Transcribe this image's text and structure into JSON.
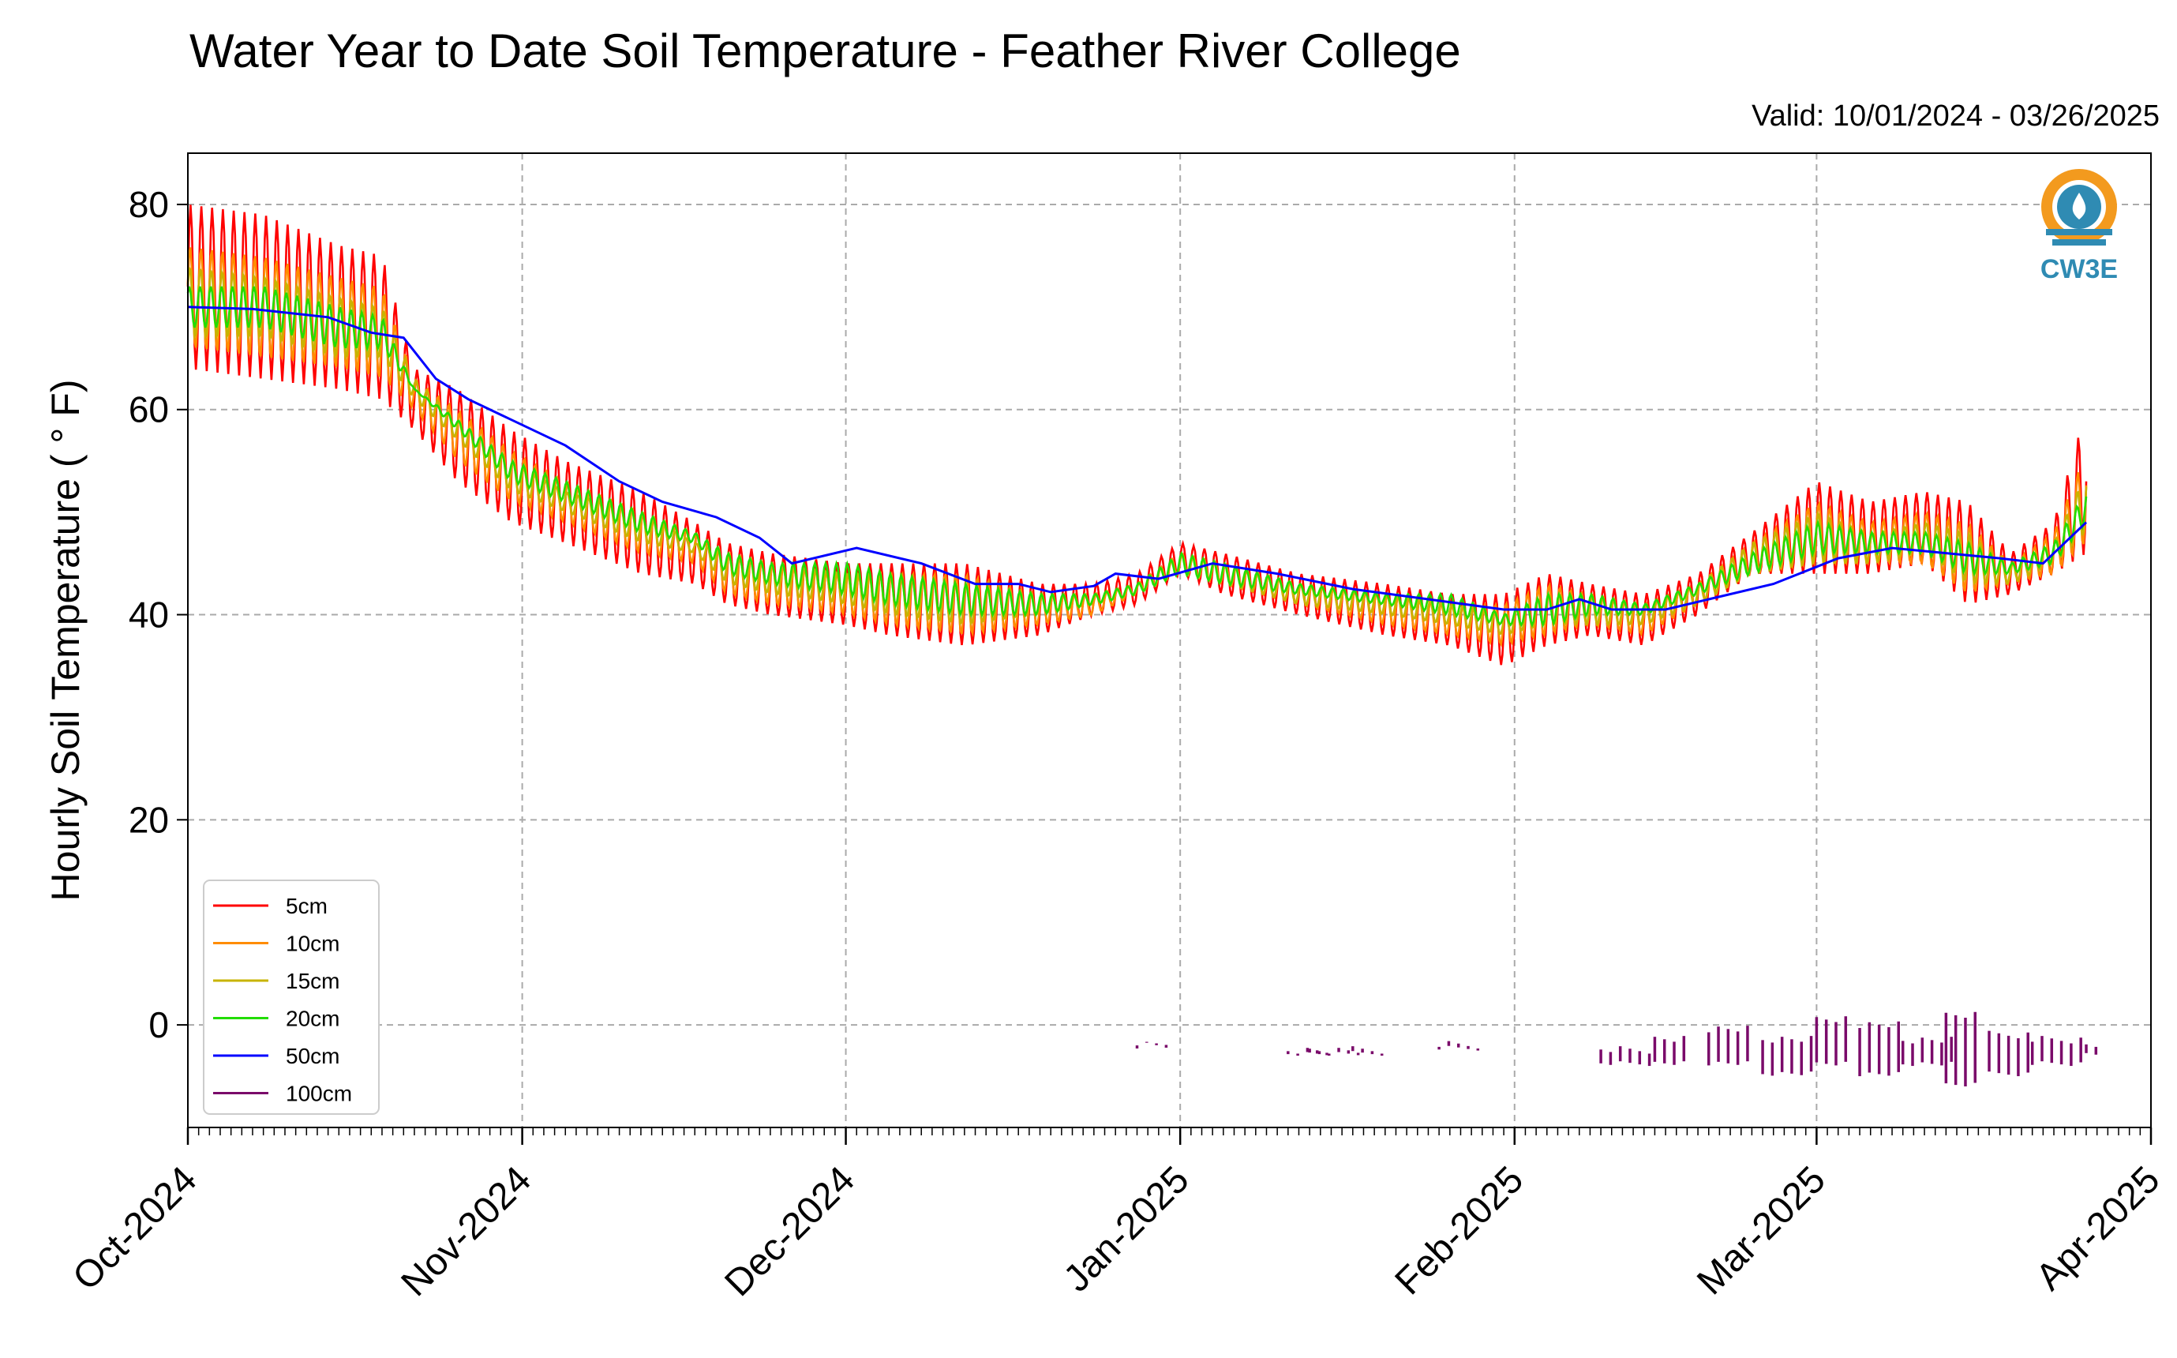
{
  "title": "Water Year to Date Soil Temperature - Feather River College",
  "valid_label": "Valid: 10/01/2024 - 03/26/2025",
  "logo_text": "CW3E",
  "chart_data": {
    "type": "line",
    "title": "Water Year to Date Soil Temperature - Feather River College",
    "ylabel": "Hourly Soil Temperature ( ° F)",
    "xlabel": "",
    "xlim": [
      "2024-10-01",
      "2025-04-01"
    ],
    "ylim": [
      -10,
      85
    ],
    "x_ticks": [
      "Oct-2024",
      "Nov-2024",
      "Dec-2024",
      "Jan-2025",
      "Feb-2025",
      "Mar-2025",
      "Apr-2025"
    ],
    "y_ticks": [
      0,
      20,
      40,
      60,
      80
    ],
    "grid": true,
    "legend_position": "lower-left",
    "series": [
      {
        "name": "5cm",
        "color": "#ff0000",
        "x": [
          "2024-10-01",
          "2024-10-08",
          "2024-10-15",
          "2024-10-19",
          "2024-10-22",
          "2024-10-26",
          "2024-10-31",
          "2024-11-05",
          "2024-11-12",
          "2024-11-17",
          "2024-11-20",
          "2024-11-24",
          "2024-12-01",
          "2024-12-05",
          "2024-12-12",
          "2024-12-19",
          "2024-12-24",
          "2024-12-28",
          "2025-01-01",
          "2025-01-05",
          "2025-01-12",
          "2025-01-20",
          "2025-01-26",
          "2025-01-31",
          "2025-02-04",
          "2025-02-08",
          "2025-02-13",
          "2025-02-18",
          "2025-02-23",
          "2025-03-01",
          "2025-03-06",
          "2025-03-11",
          "2025-03-15",
          "2025-03-19",
          "2025-03-23",
          "2025-03-26"
        ],
        "min": [
          64,
          63,
          62,
          61,
          58,
          53,
          49,
          47,
          44,
          43,
          41,
          40,
          39,
          38,
          37,
          38,
          40,
          41,
          44,
          42,
          40,
          38,
          37,
          35,
          37,
          38,
          37,
          40,
          44,
          44,
          44,
          45,
          41,
          42,
          44,
          46
        ],
        "max": [
          80,
          79,
          76,
          75,
          64,
          62,
          58,
          55,
          52,
          49,
          47,
          46,
          45,
          45,
          45,
          43,
          43,
          44,
          47,
          46,
          44,
          43,
          42,
          42,
          44,
          43,
          42,
          44,
          48,
          53,
          51,
          52,
          51,
          46,
          49,
          60
        ]
      },
      {
        "name": "10cm",
        "color": "#ff8c00",
        "x": [
          "2024-10-01",
          "2024-10-08",
          "2024-10-15",
          "2024-10-19",
          "2024-10-22",
          "2024-10-26",
          "2024-10-31",
          "2024-11-05",
          "2024-11-12",
          "2024-11-17",
          "2024-11-20",
          "2024-11-24",
          "2024-12-01",
          "2024-12-05",
          "2024-12-12",
          "2024-12-19",
          "2024-12-24",
          "2024-12-28",
          "2025-01-01",
          "2025-01-05",
          "2025-01-12",
          "2025-01-20",
          "2025-01-26",
          "2025-01-31",
          "2025-02-04",
          "2025-02-08",
          "2025-02-13",
          "2025-02-18",
          "2025-02-23",
          "2025-03-01",
          "2025-03-06",
          "2025-03-11",
          "2025-03-15",
          "2025-03-19",
          "2025-03-23",
          "2025-03-26"
        ],
        "min": [
          66,
          65,
          64,
          63,
          60,
          55,
          51,
          49,
          46,
          45,
          42,
          41,
          40,
          39,
          38,
          39,
          40,
          42,
          44,
          43,
          41,
          39,
          38,
          37,
          38,
          39,
          38,
          41,
          44,
          45,
          45,
          45,
          42,
          43,
          44,
          47
        ],
        "max": [
          76,
          75,
          73,
          72,
          63,
          60,
          56,
          53,
          50,
          48,
          46,
          45,
          44,
          44,
          44,
          42,
          42,
          43,
          46,
          45,
          43,
          42,
          41,
          41,
          43,
          42,
          41,
          43,
          47,
          51,
          49,
          50,
          49,
          45,
          48,
          56
        ]
      },
      {
        "name": "15cm",
        "color": "#c8b400",
        "x": [
          "2024-10-01",
          "2024-10-08",
          "2024-10-15",
          "2024-10-19",
          "2024-10-22",
          "2024-10-26",
          "2024-10-31",
          "2024-11-05",
          "2024-11-12",
          "2024-11-17",
          "2024-11-20",
          "2024-11-24",
          "2024-12-01",
          "2024-12-05",
          "2024-12-12",
          "2024-12-19",
          "2024-12-24",
          "2024-12-28",
          "2025-01-01",
          "2025-01-05",
          "2025-01-12",
          "2025-01-20",
          "2025-01-26",
          "2025-01-31",
          "2025-02-04",
          "2025-02-08",
          "2025-02-13",
          "2025-02-18",
          "2025-02-23",
          "2025-03-01",
          "2025-03-06",
          "2025-03-11",
          "2025-03-15",
          "2025-03-19",
          "2025-03-23",
          "2025-03-26"
        ],
        "min": [
          67,
          67,
          65,
          65,
          61,
          57,
          52,
          50,
          47,
          46,
          43,
          42,
          41,
          40,
          39,
          40,
          41,
          42,
          44,
          43,
          41,
          40,
          39,
          38,
          39,
          39,
          39,
          41,
          44,
          45,
          45,
          46,
          43,
          43,
          45,
          48
        ],
        "max": [
          74,
          73,
          71,
          70,
          63,
          59,
          55,
          52,
          50,
          47,
          46,
          45,
          44,
          44,
          43,
          42,
          42,
          43,
          46,
          45,
          43,
          42,
          41,
          40,
          42,
          42,
          41,
          43,
          47,
          50,
          48,
          49,
          48,
          45,
          47,
          54
        ]
      },
      {
        "name": "20cm",
        "color": "#22dd00",
        "x": [
          "2024-10-01",
          "2024-10-08",
          "2024-10-15",
          "2024-10-19",
          "2024-10-22",
          "2024-10-26",
          "2024-10-31",
          "2024-11-05",
          "2024-11-12",
          "2024-11-17",
          "2024-11-20",
          "2024-11-24",
          "2024-12-01",
          "2024-12-05",
          "2024-12-12",
          "2024-12-19",
          "2024-12-24",
          "2024-12-28",
          "2025-01-01",
          "2025-01-05",
          "2025-01-12",
          "2025-01-20",
          "2025-01-26",
          "2025-01-31",
          "2025-02-04",
          "2025-02-08",
          "2025-02-13",
          "2025-02-18",
          "2025-02-23",
          "2025-03-01",
          "2025-03-06",
          "2025-03-11",
          "2025-03-15",
          "2025-03-19",
          "2025-03-23",
          "2025-03-26"
        ],
        "min": [
          68,
          68,
          66,
          66,
          62,
          58,
          53,
          51,
          48,
          47,
          44,
          43,
          42,
          41,
          40,
          40,
          41,
          42,
          44,
          43,
          42,
          41,
          40,
          39,
          39,
          40,
          40,
          42,
          44,
          46,
          46,
          46,
          44,
          44,
          45,
          49
        ],
        "max": [
          72,
          72,
          70,
          69,
          62,
          59,
          55,
          53,
          50,
          48,
          46,
          45,
          45,
          44,
          43,
          42,
          42,
          43,
          46,
          45,
          43,
          42,
          42,
          40,
          42,
          42,
          41,
          43,
          46,
          49,
          48,
          48,
          47,
          45,
          47,
          52
        ]
      },
      {
        "name": "50cm",
        "color": "#0000ff",
        "x": [
          "2024-10-01",
          "2024-10-07",
          "2024-10-14",
          "2024-10-18",
          "2024-10-21",
          "2024-10-24",
          "2024-10-27",
          "2024-10-31",
          "2024-11-05",
          "2024-11-10",
          "2024-11-14",
          "2024-11-19",
          "2024-11-23",
          "2024-11-26",
          "2024-12-02",
          "2024-12-08",
          "2024-12-13",
          "2024-12-17",
          "2024-12-20",
          "2024-12-24",
          "2024-12-26",
          "2024-12-30",
          "2025-01-04",
          "2025-01-10",
          "2025-01-17",
          "2025-01-24",
          "2025-01-31",
          "2025-02-04",
          "2025-02-07",
          "2025-02-10",
          "2025-02-15",
          "2025-02-19",
          "2025-02-25",
          "2025-03-03",
          "2025-03-08",
          "2025-03-13",
          "2025-03-18",
          "2025-03-22",
          "2025-03-26"
        ],
        "y": [
          70,
          69.8,
          69,
          67.5,
          67,
          63,
          61,
          59,
          56.5,
          53,
          51,
          49.5,
          47.5,
          45,
          46.5,
          45,
          43,
          43,
          42.2,
          42.8,
          44,
          43.5,
          45,
          44,
          42.5,
          41.5,
          40.5,
          40.5,
          41.5,
          40.5,
          40.5,
          41.5,
          43,
          45.5,
          46.5,
          46,
          45.5,
          45,
          49
        ]
      },
      {
        "name": "100cm",
        "color": "#7a0a6a",
        "x": [
          "2024-12-28",
          "2025-01-11",
          "2025-01-13",
          "2025-01-17",
          "2025-01-25",
          "2025-02-09",
          "2025-02-14",
          "2025-02-19",
          "2025-02-24",
          "2025-03-01",
          "2025-03-05",
          "2025-03-09",
          "2025-03-13",
          "2025-03-17",
          "2025-03-21",
          "2025-03-26"
        ],
        "min": [
          -2,
          -3,
          -3,
          -3,
          -2.5,
          -4,
          -4,
          -4,
          -5,
          -4,
          -5,
          -4,
          -6,
          -5,
          -4,
          -3
        ],
        "max": [
          -1.5,
          -2,
          -2,
          -2,
          -1.5,
          -2,
          -1,
          0,
          -1,
          1,
          0.5,
          -1,
          1.5,
          -0.5,
          -1,
          -1.5
        ]
      }
    ]
  }
}
